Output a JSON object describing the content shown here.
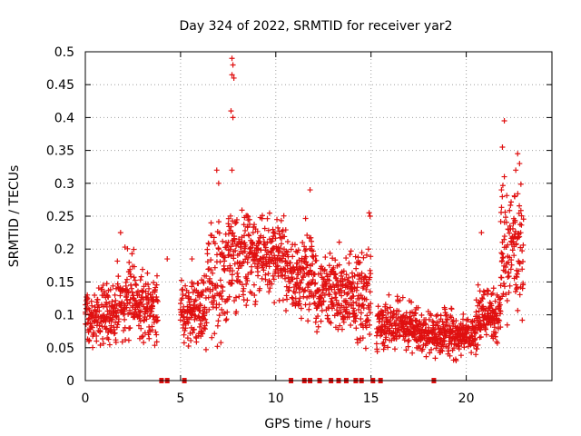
{
  "chart_data": {
    "type": "scatter",
    "title": "Day 324 of 2022, SRMTID for receiver yar2",
    "xlabel": "GPS time / hours",
    "ylabel": "SRMTID / TECUs",
    "xlim": [
      0,
      24.5
    ],
    "ylim": [
      0,
      0.5
    ],
    "x_ticks": [
      0,
      5,
      10,
      15,
      20
    ],
    "x_tick_labels": [
      "0",
      "5",
      "10",
      "15",
      "20"
    ],
    "y_ticks": [
      0,
      0.05,
      0.1,
      0.15,
      0.2,
      0.25,
      0.3,
      0.35,
      0.4,
      0.45,
      0.5
    ],
    "y_tick_labels": [
      "0",
      "0.05",
      "0.1",
      "0.15",
      "0.2",
      "0.25",
      "0.3",
      "0.35",
      "0.4",
      "0.45",
      "0.5"
    ],
    "grid": true,
    "marker": "plus",
    "color": "#e01010",
    "zero_points_x": [
      4.0,
      4.3,
      5.2,
      10.8,
      11.5,
      11.8,
      12.3,
      12.9,
      13.3,
      13.7,
      14.2,
      14.5,
      15.1,
      15.5,
      18.3
    ],
    "segments": [
      {
        "x_start": 0.0,
        "x_end": 0.9,
        "mean": 0.095,
        "spread": 0.035
      },
      {
        "x_start": 0.9,
        "x_end": 1.6,
        "mean": 0.1,
        "spread": 0.04
      },
      {
        "x_start": 1.6,
        "x_end": 2.6,
        "mean": 0.13,
        "spread": 0.05
      },
      {
        "x_start": 2.6,
        "x_end": 3.8,
        "mean": 0.115,
        "spread": 0.04
      },
      {
        "x_start": 5.0,
        "x_end": 6.4,
        "mean": 0.105,
        "spread": 0.04
      },
      {
        "x_start": 6.4,
        "x_end": 7.5,
        "mean": 0.16,
        "spread": 0.07
      },
      {
        "x_start": 7.5,
        "x_end": 9.0,
        "mean": 0.19,
        "spread": 0.06
      },
      {
        "x_start": 9.0,
        "x_end": 10.5,
        "mean": 0.185,
        "spread": 0.05
      },
      {
        "x_start": 10.5,
        "x_end": 12.0,
        "mean": 0.16,
        "spread": 0.05
      },
      {
        "x_start": 12.0,
        "x_end": 13.5,
        "mean": 0.14,
        "spread": 0.05
      },
      {
        "x_start": 13.5,
        "x_end": 15.0,
        "mean": 0.13,
        "spread": 0.05
      },
      {
        "x_start": 15.3,
        "x_end": 17.5,
        "mean": 0.085,
        "spread": 0.03
      },
      {
        "x_start": 17.5,
        "x_end": 20.5,
        "mean": 0.07,
        "spread": 0.025
      },
      {
        "x_start": 20.5,
        "x_end": 21.8,
        "mean": 0.1,
        "spread": 0.035
      },
      {
        "x_start": 21.8,
        "x_end": 23.0,
        "mean": 0.19,
        "spread": 0.08
      }
    ],
    "notable_points": [
      {
        "x": 7.7,
        "y": 0.49
      },
      {
        "x": 7.75,
        "y": 0.48
      },
      {
        "x": 7.7,
        "y": 0.465
      },
      {
        "x": 7.8,
        "y": 0.46
      },
      {
        "x": 7.65,
        "y": 0.41
      },
      {
        "x": 7.75,
        "y": 0.4
      },
      {
        "x": 7.7,
        "y": 0.32
      },
      {
        "x": 6.9,
        "y": 0.32
      },
      {
        "x": 7.0,
        "y": 0.3
      },
      {
        "x": 11.8,
        "y": 0.29
      },
      {
        "x": 14.9,
        "y": 0.255
      },
      {
        "x": 14.95,
        "y": 0.25
      },
      {
        "x": 22.0,
        "y": 0.395
      },
      {
        "x": 21.9,
        "y": 0.355
      },
      {
        "x": 22.7,
        "y": 0.345
      },
      {
        "x": 22.8,
        "y": 0.33
      },
      {
        "x": 22.6,
        "y": 0.32
      },
      {
        "x": 22.0,
        "y": 0.31
      },
      {
        "x": 21.85,
        "y": 0.29
      },
      {
        "x": 20.8,
        "y": 0.225
      },
      {
        "x": 1.85,
        "y": 0.225
      },
      {
        "x": 4.3,
        "y": 0.185
      },
      {
        "x": 5.6,
        "y": 0.185
      }
    ]
  }
}
